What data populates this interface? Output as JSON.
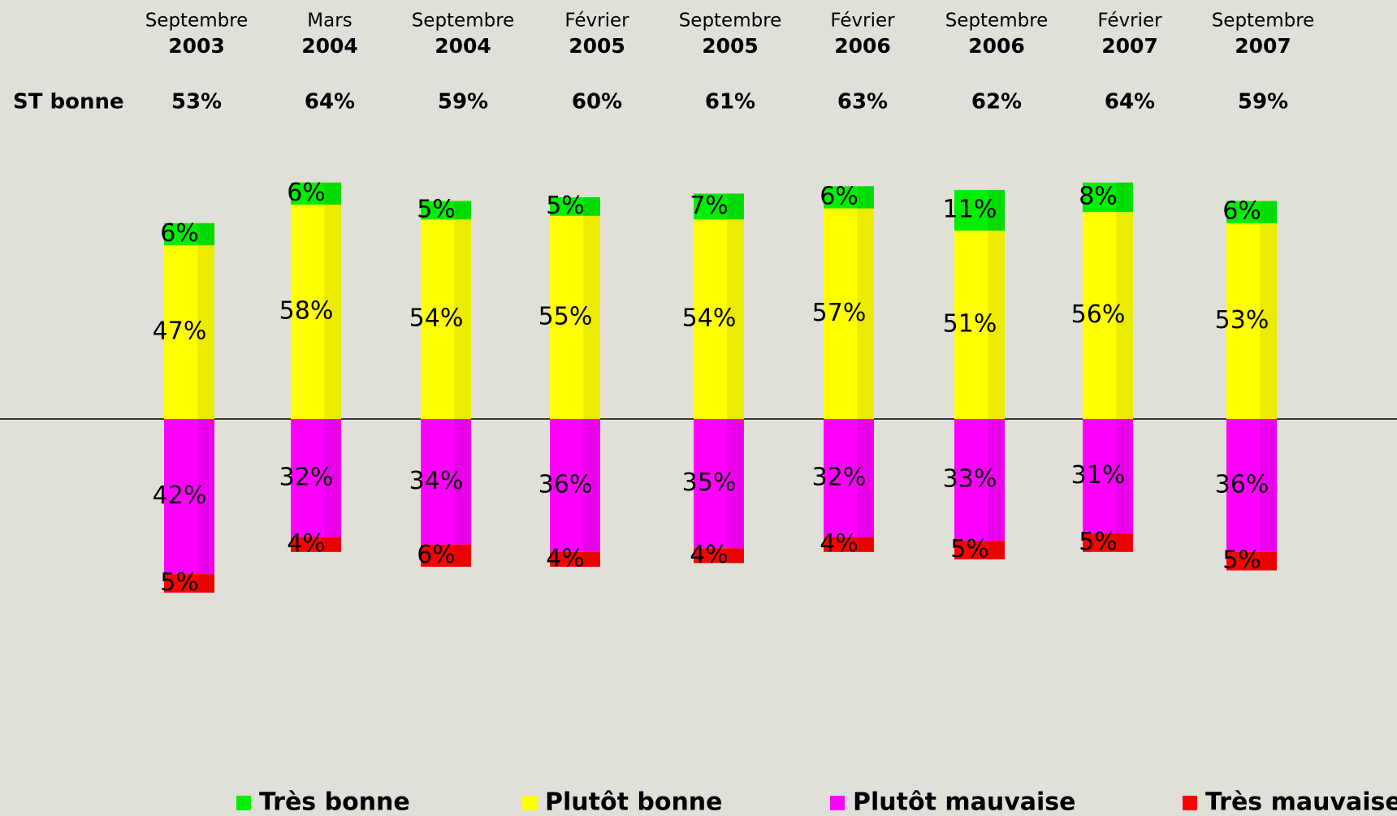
{
  "chart_data": {
    "type": "diverging-stacked-bar",
    "categories": [
      [
        "Septembre",
        "2003"
      ],
      [
        "Mars",
        "2004"
      ],
      [
        "Septembre",
        "2004"
      ],
      [
        "Février",
        "2005"
      ],
      [
        "Septembre",
        "2005"
      ],
      [
        "Février",
        "2006"
      ],
      [
        "Septembre",
        "2006"
      ],
      [
        "Février",
        "2007"
      ],
      [
        "Septembre",
        "2007"
      ]
    ],
    "summary": {
      "label": "ST bonne",
      "color": "#0000ff",
      "values": [
        53,
        64,
        59,
        60,
        61,
        63,
        62,
        64,
        59
      ],
      "value_labels": [
        "53%",
        "64%",
        "59%",
        "60%",
        "61%",
        "63%",
        "62%",
        "64%",
        "59%"
      ]
    },
    "series": [
      {
        "name": "Très bonne",
        "color": "#00ee00",
        "side": "up",
        "values": [
          6,
          6,
          5,
          5,
          7,
          6,
          11,
          8,
          6
        ],
        "value_labels": [
          "6%",
          "6%",
          "5%",
          "5%",
          "7%",
          "6%",
          "11%",
          "8%",
          "6%"
        ]
      },
      {
        "name": "Plutôt bonne",
        "color": "#ffff00",
        "side": "up",
        "values": [
          47,
          58,
          54,
          55,
          54,
          57,
          51,
          56,
          53
        ],
        "value_labels": [
          "47%",
          "58%",
          "54%",
          "55%",
          "54%",
          "57%",
          "51%",
          "56%",
          "53%"
        ]
      },
      {
        "name": "Plutôt mauvaise",
        "color": "#ff00ff",
        "side": "down",
        "values": [
          42,
          32,
          34,
          36,
          35,
          32,
          33,
          31,
          36
        ],
        "value_labels": [
          "42%",
          "32%",
          "34%",
          "36%",
          "35%",
          "32%",
          "33%",
          "31%",
          "36%"
        ]
      },
      {
        "name": "Très mauvaise",
        "color": "#ff0000",
        "side": "down",
        "values": [
          5,
          4,
          6,
          4,
          4,
          4,
          5,
          5,
          5
        ],
        "value_labels": [
          "5%",
          "4%",
          "6%",
          "4%",
          "4%",
          "4%",
          "5%",
          "5%",
          "5%"
        ]
      }
    ],
    "legend": "bottom"
  }
}
